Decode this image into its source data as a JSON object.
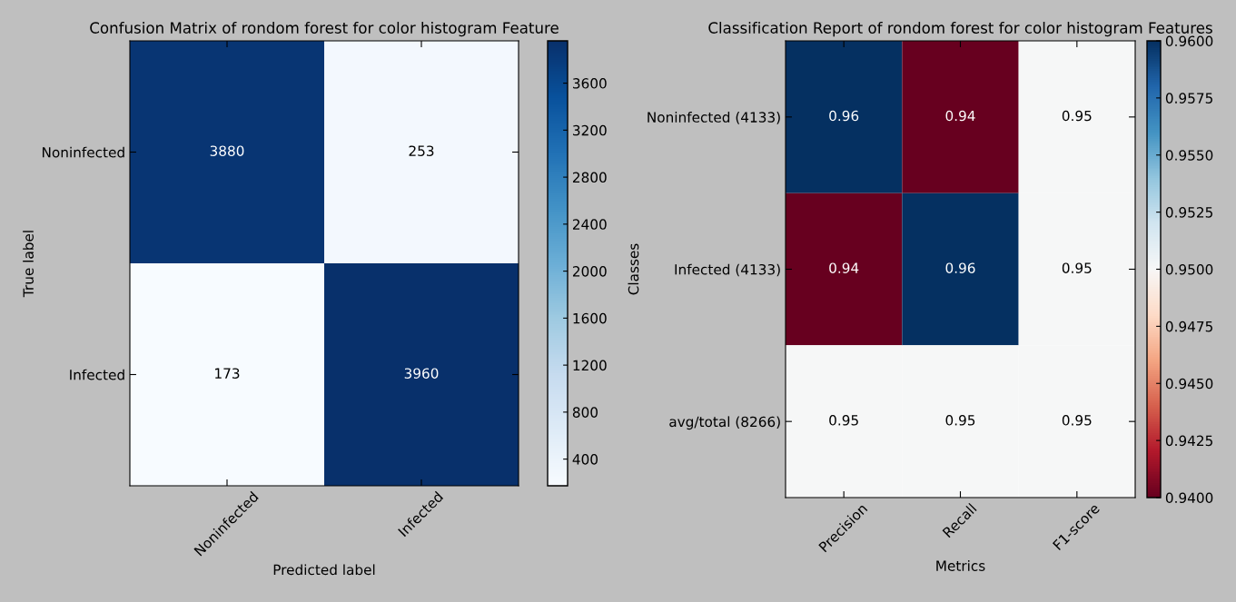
{
  "chart_data": [
    {
      "type": "heatmap",
      "title": "Confusion Matrix of rondom forest for color histogram Feature",
      "xlabel": "Predicted label",
      "ylabel": "True label",
      "categories": [
        "Noninfected",
        "Infected"
      ],
      "y_categories": [
        "Noninfected",
        "Infected"
      ],
      "cells": [
        [
          3880,
          253
        ],
        [
          173,
          3960
        ]
      ],
      "clim": [
        173,
        3960
      ],
      "cticks": [
        400,
        800,
        1200,
        1600,
        2000,
        2400,
        2800,
        3200,
        3600
      ],
      "data_labels": true
    },
    {
      "type": "heatmap",
      "title": "Classification Report of rondom forest for color histogram Features",
      "xlabel": "Metrics",
      "ylabel": "Classes",
      "categories": [
        "Precision",
        "Recall",
        "F1-score"
      ],
      "y_categories": [
        "Noninfected (4133)",
        "Infected (4133)",
        "avg/total (8266)"
      ],
      "cells": [
        [
          0.96,
          0.94,
          0.95
        ],
        [
          0.94,
          0.96,
          0.95
        ],
        [
          0.95,
          0.95,
          0.95
        ]
      ],
      "clim": [
        0.94,
        0.96
      ],
      "cticks": [
        {
          "value": 0.94,
          "label": "0.9400"
        },
        {
          "value": 0.9425,
          "label": "0.9425"
        },
        {
          "value": 0.945,
          "label": "0.9450"
        },
        {
          "value": 0.9475,
          "label": "0.9475"
        },
        {
          "value": 0.95,
          "label": "0.9500"
        },
        {
          "value": 0.9525,
          "label": "0.9525"
        },
        {
          "value": 0.955,
          "label": "0.9550"
        },
        {
          "value": 0.9575,
          "label": "0.9575"
        },
        {
          "value": 0.96,
          "label": "0.9600"
        }
      ],
      "data_labels": true
    }
  ]
}
